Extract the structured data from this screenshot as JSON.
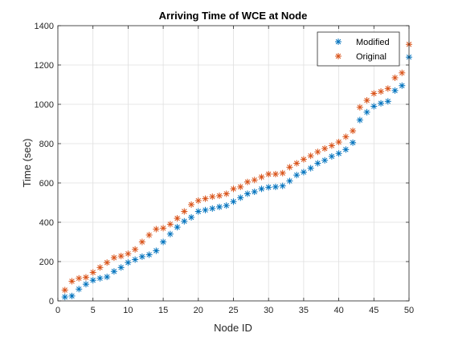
{
  "chart_data": {
    "type": "scatter",
    "title": "Arriving Time of WCE at Node",
    "xlabel": "Node ID",
    "ylabel": "Time (sec)",
    "xlim": [
      0,
      50
    ],
    "ylim": [
      0,
      1400
    ],
    "xticks": [
      0,
      5,
      10,
      15,
      20,
      25,
      30,
      35,
      40,
      45,
      50
    ],
    "yticks": [
      0,
      200,
      400,
      600,
      800,
      1000,
      1200,
      1400
    ],
    "grid": true,
    "legend_position": "top-right",
    "marker": "*",
    "x": [
      1,
      2,
      3,
      4,
      5,
      6,
      7,
      8,
      9,
      10,
      11,
      12,
      13,
      14,
      15,
      16,
      17,
      18,
      19,
      20,
      21,
      22,
      23,
      24,
      25,
      26,
      27,
      28,
      29,
      30,
      31,
      32,
      33,
      34,
      35,
      36,
      37,
      38,
      39,
      40,
      41,
      42,
      43,
      44,
      45,
      46,
      47,
      48,
      49,
      50
    ],
    "series": [
      {
        "name": "Modified",
        "color": "#0072BD",
        "values": [
          20,
          25,
          60,
          85,
          105,
          115,
          122,
          150,
          170,
          195,
          210,
          225,
          235,
          255,
          300,
          340,
          375,
          405,
          425,
          455,
          462,
          470,
          478,
          485,
          505,
          525,
          545,
          555,
          570,
          578,
          580,
          585,
          610,
          640,
          655,
          675,
          700,
          715,
          735,
          750,
          770,
          805,
          920,
          960,
          990,
          1005,
          1015,
          1070,
          1095,
          1240
        ]
      },
      {
        "name": "Original",
        "color": "#D95319",
        "values": [
          55,
          100,
          115,
          120,
          145,
          170,
          195,
          220,
          228,
          240,
          262,
          300,
          335,
          365,
          370,
          390,
          420,
          455,
          490,
          510,
          520,
          530,
          535,
          545,
          570,
          580,
          605,
          615,
          630,
          645,
          645,
          650,
          680,
          700,
          720,
          738,
          758,
          775,
          790,
          808,
          835,
          865,
          985,
          1020,
          1055,
          1065,
          1080,
          1135,
          1160,
          1305
        ]
      }
    ]
  }
}
